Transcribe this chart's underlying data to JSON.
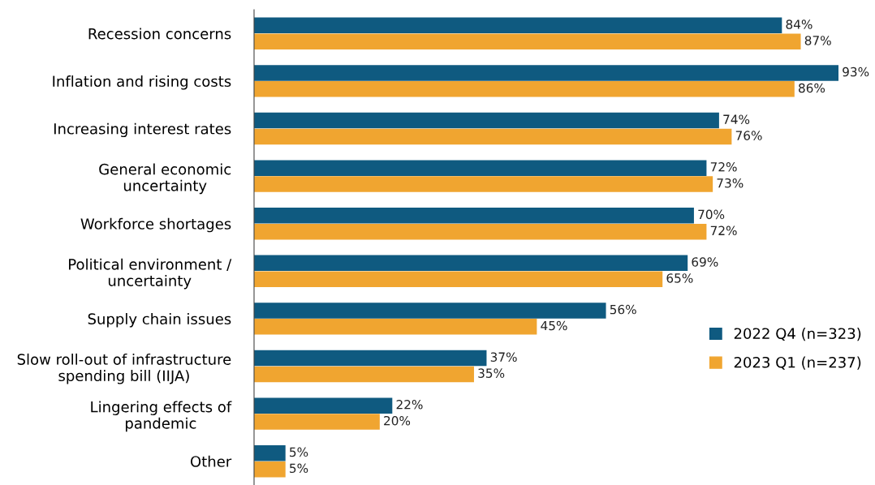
{
  "chart_data": {
    "type": "bar",
    "orientation": "horizontal",
    "categories": [
      "Recession concerns",
      "Inflation and rising costs",
      "Increasing interest rates",
      "General economic\nuncertainty",
      "Workforce shortages",
      "Political environment /\nuncertainty",
      "Supply chain issues",
      "Slow roll-out of infrastructure\nspending bill (IIJA)",
      "Lingering effects of\npandemic",
      "Other"
    ],
    "tick_labels": "y",
    "grid": false,
    "legend": "right",
    "series": [
      {
        "name": "2022 Q4 (n=323)",
        "color": "#0f5a80",
        "values": [
          84,
          93,
          74,
          72,
          70,
          69,
          56,
          37,
          22,
          5
        ],
        "value_labels": [
          "84%",
          "93%",
          "74%",
          "72%",
          "70%",
          "69%",
          "56%",
          "37%",
          "22%",
          "5%"
        ]
      },
      {
        "name": "2023 Q1 (n=237)",
        "color": "#f0a530",
        "values": [
          87,
          86,
          76,
          73,
          72,
          65,
          45,
          35,
          20,
          5
        ],
        "value_labels": [
          "87%",
          "86%",
          "76%",
          "73%",
          "72%",
          "65%",
          "45%",
          "35%",
          "20%",
          "5%"
        ]
      }
    ]
  }
}
